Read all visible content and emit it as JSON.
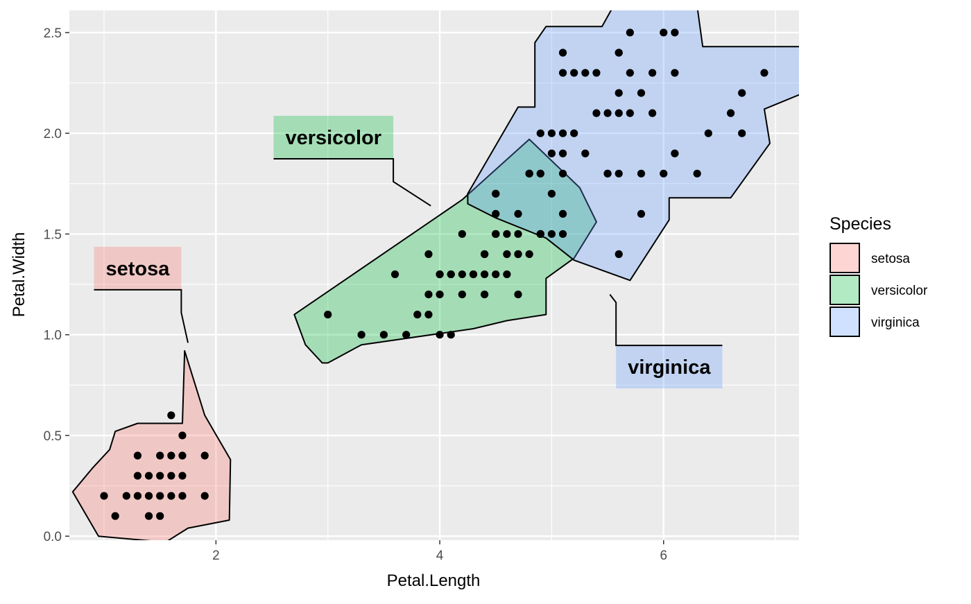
{
  "chart_data": {
    "type": "scatter",
    "xlabel": "Petal.Length",
    "ylabel": "Petal.Width",
    "xlim": [
      0.69,
      7.21
    ],
    "ylim": [
      -0.02,
      2.61
    ],
    "x_ticks": [
      2,
      4,
      6
    ],
    "x_tick_labels": [
      "2",
      "4",
      "6"
    ],
    "y_ticks": [
      0,
      0.5,
      1,
      1.5,
      2,
      2.5
    ],
    "y_tick_labels": [
      "0.0",
      "0.5",
      "1.0",
      "1.5",
      "2.0",
      "2.5"
    ],
    "grid": true,
    "legend": {
      "title": "Species",
      "position": "right",
      "entries": [
        "setosa",
        "versicolor",
        "virginica"
      ]
    },
    "colors": {
      "setosa": "#F8766D",
      "versicolor": "#00BA38",
      "virginica": "#619CFF",
      "panel": "#EBEBEB",
      "grid": "#FFFFFF",
      "points": "#000000"
    },
    "series": [
      {
        "name": "setosa",
        "points": [
          [
            1.4,
            0.2
          ],
          [
            1.3,
            0.2
          ],
          [
            1.5,
            0.2
          ],
          [
            1.7,
            0.4
          ],
          [
            1.4,
            0.3
          ],
          [
            1.5,
            0.1
          ],
          [
            1.6,
            0.2
          ],
          [
            1.4,
            0.1
          ],
          [
            1.1,
            0.1
          ],
          [
            1.2,
            0.2
          ],
          [
            1.3,
            0.4
          ],
          [
            1.7,
            0.3
          ],
          [
            1.9,
            0.2
          ],
          [
            1.6,
            0.6
          ],
          [
            1.6,
            0.4
          ],
          [
            1.5,
            0.4
          ],
          [
            1.0,
            0.2
          ],
          [
            1.9,
            0.4
          ],
          [
            1.5,
            0.3
          ],
          [
            1.3,
            0.3
          ],
          [
            1.7,
            0.5
          ],
          [
            1.6,
            0.3
          ],
          [
            1.7,
            0.2
          ]
        ],
        "hull": [
          [
            0.72,
            0.22
          ],
          [
            0.9,
            0.34
          ],
          [
            1.05,
            0.43
          ],
          [
            1.1,
            0.52
          ],
          [
            1.3,
            0.56
          ],
          [
            1.7,
            0.56
          ],
          [
            1.72,
            0.92
          ],
          [
            1.9,
            0.6
          ],
          [
            2.13,
            0.38
          ],
          [
            2.12,
            0.08
          ],
          [
            1.75,
            0.04
          ],
          [
            1.55,
            -0.03
          ],
          [
            0.95,
            0.0
          ]
        ],
        "callout": {
          "label": "setosa",
          "label_xy": [
            1.3,
            1.33
          ],
          "line_end": [
            1.75,
            0.96
          ]
        }
      },
      {
        "name": "versicolor",
        "points": [
          [
            4.7,
            1.4
          ],
          [
            4.5,
            1.5
          ],
          [
            4.9,
            1.5
          ],
          [
            4.0,
            1.3
          ],
          [
            4.6,
            1.5
          ],
          [
            3.3,
            1.0
          ],
          [
            3.9,
            1.1
          ],
          [
            3.5,
            1.0
          ],
          [
            4.2,
            1.5
          ],
          [
            4.0,
            1.0
          ],
          [
            4.7,
            1.4
          ],
          [
            3.6,
            1.3
          ],
          [
            4.4,
            1.4
          ],
          [
            4.5,
            1.5
          ],
          [
            4.1,
            1.0
          ],
          [
            4.5,
            1.5
          ],
          [
            3.9,
            1.4
          ],
          [
            4.8,
            1.8
          ],
          [
            4.0,
            1.3
          ],
          [
            4.9,
            1.5
          ],
          [
            4.7,
            1.2
          ],
          [
            4.3,
            1.3
          ],
          [
            4.4,
            1.4
          ],
          [
            4.8,
            1.4
          ],
          [
            5.0,
            1.7
          ],
          [
            4.5,
            1.5
          ],
          [
            3.8,
            1.1
          ],
          [
            3.7,
            1.0
          ],
          [
            5.1,
            1.6
          ],
          [
            4.5,
            1.6
          ],
          [
            4.7,
            1.5
          ],
          [
            4.4,
            1.3
          ],
          [
            4.1,
            1.3
          ],
          [
            4.5,
            1.3
          ],
          [
            4.6,
            1.4
          ],
          [
            4.2,
            1.2
          ],
          [
            4.2,
            1.3
          ],
          [
            4.3,
            1.3
          ],
          [
            3.0,
            1.1
          ],
          [
            4.1,
            1.3
          ],
          [
            4.9,
            1.5
          ],
          [
            4.7,
            1.6
          ],
          [
            4.0,
            1.2
          ],
          [
            4.4,
            1.2
          ],
          [
            3.9,
            1.2
          ],
          [
            4.6,
            1.3
          ],
          [
            4.5,
            1.7
          ],
          [
            4.8,
            1.8
          ],
          [
            4.9,
            1.5
          ]
        ],
        "hull": [
          [
            2.7,
            1.1
          ],
          [
            4.2,
            1.67
          ],
          [
            4.8,
            1.97
          ],
          [
            5.25,
            1.73
          ],
          [
            5.4,
            1.56
          ],
          [
            5.2,
            1.38
          ],
          [
            4.95,
            1.28
          ],
          [
            4.95,
            1.1
          ],
          [
            4.6,
            1.07
          ],
          [
            4.3,
            1.03
          ],
          [
            3.3,
            0.95
          ],
          [
            3.0,
            0.86
          ],
          [
            2.95,
            0.86
          ],
          [
            2.8,
            0.95
          ]
        ],
        "callout": {
          "label": "versicolor",
          "label_xy": [
            3.05,
            1.98
          ],
          "line_end": [
            3.92,
            1.64
          ]
        }
      },
      {
        "name": "virginica",
        "points": [
          [
            6.0,
            2.5
          ],
          [
            5.1,
            1.9
          ],
          [
            5.9,
            2.1
          ],
          [
            5.6,
            1.8
          ],
          [
            5.8,
            2.2
          ],
          [
            6.6,
            2.1
          ],
          [
            4.5,
            1.7
          ],
          [
            6.3,
            1.8
          ],
          [
            5.8,
            1.8
          ],
          [
            6.1,
            2.5
          ],
          [
            5.1,
            2.0
          ],
          [
            5.3,
            1.9
          ],
          [
            5.5,
            2.1
          ],
          [
            5.0,
            2.0
          ],
          [
            5.1,
            2.4
          ],
          [
            5.3,
            2.3
          ],
          [
            5.5,
            1.8
          ],
          [
            6.7,
            2.2
          ],
          [
            6.9,
            2.3
          ],
          [
            5.0,
            1.5
          ],
          [
            5.7,
            2.3
          ],
          [
            4.9,
            2.0
          ],
          [
            6.7,
            2.0
          ],
          [
            4.9,
            1.8
          ],
          [
            5.7,
            2.1
          ],
          [
            6.0,
            1.8
          ],
          [
            4.8,
            1.8
          ],
          [
            4.9,
            1.8
          ],
          [
            5.6,
            2.1
          ],
          [
            5.8,
            1.6
          ],
          [
            6.1,
            1.9
          ],
          [
            6.4,
            2.0
          ],
          [
            5.6,
            2.2
          ],
          [
            5.1,
            1.5
          ],
          [
            5.6,
            1.4
          ],
          [
            6.1,
            2.3
          ],
          [
            5.6,
            2.4
          ],
          [
            5.5,
            1.8
          ],
          [
            4.8,
            1.8
          ],
          [
            5.4,
            2.1
          ],
          [
            5.6,
            2.4
          ],
          [
            5.1,
            2.3
          ],
          [
            5.9,
            2.3
          ],
          [
            5.7,
            2.5
          ],
          [
            5.2,
            2.3
          ],
          [
            5.0,
            1.9
          ],
          [
            5.2,
            2.0
          ],
          [
            5.4,
            2.3
          ],
          [
            5.1,
            1.8
          ]
        ],
        "hull": [
          [
            4.25,
            1.7
          ],
          [
            4.7,
            2.13
          ],
          [
            4.85,
            2.13
          ],
          [
            4.85,
            2.45
          ],
          [
            4.95,
            2.53
          ],
          [
            5.45,
            2.53
          ],
          [
            5.55,
            2.63
          ],
          [
            6.3,
            2.63
          ],
          [
            6.35,
            2.43
          ],
          [
            7.25,
            2.43
          ],
          [
            7.25,
            2.2
          ],
          [
            6.9,
            2.12
          ],
          [
            6.95,
            1.95
          ],
          [
            6.6,
            1.68
          ],
          [
            6.05,
            1.68
          ],
          [
            6.05,
            1.57
          ],
          [
            5.7,
            1.27
          ],
          [
            5.2,
            1.37
          ],
          [
            4.95,
            1.48
          ],
          [
            4.5,
            1.58
          ],
          [
            4.25,
            1.65
          ]
        ],
        "callout": {
          "label": "virginica",
          "label_xy": [
            6.05,
            0.84
          ],
          "line_end": [
            5.52,
            1.2
          ]
        }
      }
    ]
  }
}
